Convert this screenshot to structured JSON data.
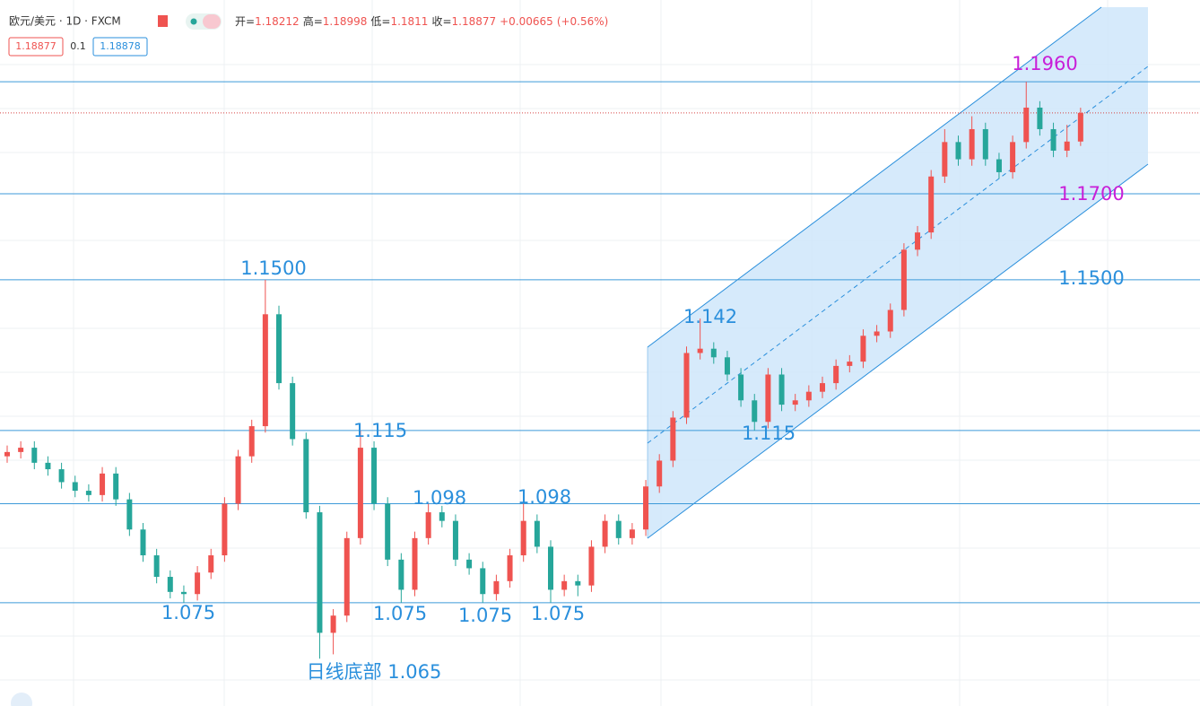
{
  "chart_data": {
    "type": "candlestick",
    "symbol": "欧元/美元 · 1D · FXCM",
    "ohlc_labels": [
      "开=",
      "高=",
      "低=",
      "收="
    ],
    "change": "+0.00665",
    "change_pct": "(+0.56%)",
    "bid": "1.18877",
    "spread": "0.1",
    "ask": "1.18878",
    "up_color": "#ef5350",
    "down_color": "#26a69a",
    "ylim": [
      1.051,
      1.215
    ],
    "levels": [
      1.196,
      1.17,
      1.15,
      1.115,
      1.098,
      1.075
    ],
    "annotations": [
      {
        "text": "1.1500",
        "color": "#2a8fdc"
      },
      {
        "text": "1.075",
        "color": "#2a8fdc"
      },
      {
        "text": "日线底部 1.065",
        "color": "#2a8fdc"
      },
      {
        "text": "1.115",
        "color": "#2a8fdc"
      },
      {
        "text": "1.098",
        "color": "#2a8fdc"
      },
      {
        "text": "1.098",
        "color": "#2a8fdc"
      },
      {
        "text": "1.075",
        "color": "#2a8fdc"
      },
      {
        "text": "1.075",
        "color": "#2a8fdc"
      },
      {
        "text": "1.075",
        "color": "#2a8fdc"
      },
      {
        "text": "1.142",
        "color": "#2a8fdc"
      },
      {
        "text": "1.115",
        "color": "#2a8fdc"
      },
      {
        "text": "1.1960",
        "color": "#c81fd8"
      },
      {
        "text": "1.1700",
        "color": "#c81fd8"
      },
      {
        "text": "1.1500",
        "color": "#2a8fdc"
      }
    ],
    "open": [
      1.109,
      1.11,
      1.111,
      1.1075,
      1.106,
      1.103,
      1.101,
      1.1,
      1.105,
      1.099,
      1.092,
      1.086,
      1.081,
      1.0775,
      1.077,
      1.082,
      1.086,
      1.098,
      1.109,
      1.116,
      1.142,
      1.126,
      1.113,
      1.096,
      1.068,
      1.072,
      1.09,
      1.111,
      1.098,
      1.085,
      1.078,
      1.09,
      1.096,
      1.094,
      1.085,
      1.083,
      1.077,
      1.08,
      1.086,
      1.094,
      1.088,
      1.078,
      1.08,
      1.079,
      1.088,
      1.094,
      1.09,
      1.092,
      1.102,
      1.108,
      1.118,
      1.133,
      1.134,
      1.132,
      1.128,
      1.122,
      1.117,
      1.128,
      1.121,
      1.122,
      1.124,
      1.126,
      1.13,
      1.131,
      1.137,
      1.138,
      1.143,
      1.157,
      1.161,
      1.174,
      1.182,
      1.178,
      1.185,
      1.178,
      1.175,
      1.182,
      1.19,
      1.185,
      1.18,
      1.18212
    ],
    "high": [
      1.1115,
      1.1125,
      1.1125,
      1.109,
      1.1075,
      1.1045,
      1.1025,
      1.1065,
      1.1065,
      1.1005,
      1.0935,
      1.0875,
      1.0825,
      1.079,
      1.0835,
      1.0875,
      1.0995,
      1.1105,
      1.1175,
      1.15,
      1.144,
      1.1275,
      1.1145,
      1.0975,
      1.0735,
      1.0915,
      1.115,
      1.1125,
      1.0995,
      1.0865,
      1.0915,
      1.098,
      1.0975,
      1.0955,
      1.0865,
      1.0845,
      1.0815,
      1.0875,
      1.098,
      1.0955,
      1.0895,
      1.0815,
      1.0815,
      1.0895,
      1.0955,
      1.0955,
      1.0935,
      1.1035,
      1.1095,
      1.1195,
      1.1345,
      1.141,
      1.1355,
      1.1335,
      1.1295,
      1.1235,
      1.1295,
      1.1295,
      1.1235,
      1.1255,
      1.1275,
      1.1315,
      1.1325,
      1.1385,
      1.1395,
      1.1445,
      1.1585,
      1.1625,
      1.1755,
      1.185,
      1.1835,
      1.188,
      1.1865,
      1.1795,
      1.1835,
      1.196,
      1.1915,
      1.1865,
      1.186,
      1.18998
    ],
    "low": [
      1.1075,
      1.1085,
      1.106,
      1.1045,
      1.1015,
      1.0995,
      1.0985,
      1.0985,
      1.0975,
      1.0905,
      1.0845,
      1.0795,
      1.076,
      1.075,
      1.0755,
      1.0805,
      1.0845,
      1.0965,
      1.1075,
      1.1145,
      1.1245,
      1.1115,
      1.0945,
      1.062,
      1.063,
      1.0705,
      1.0885,
      1.0965,
      1.0835,
      1.075,
      1.0765,
      1.0885,
      1.0925,
      1.0835,
      1.0815,
      1.075,
      1.0755,
      1.0785,
      1.0845,
      1.0865,
      1.075,
      1.0765,
      1.0765,
      1.0775,
      1.0865,
      1.0885,
      1.0885,
      1.0905,
      1.1005,
      1.1065,
      1.1165,
      1.1315,
      1.1305,
      1.1265,
      1.1205,
      1.115,
      1.1155,
      1.1195,
      1.1195,
      1.1205,
      1.1225,
      1.1245,
      1.1285,
      1.1295,
      1.1355,
      1.1365,
      1.1415,
      1.1555,
      1.1595,
      1.1725,
      1.1765,
      1.1765,
      1.1765,
      1.1735,
      1.1735,
      1.1805,
      1.1835,
      1.1785,
      1.1785,
      1.1811
    ],
    "close": [
      1.11,
      1.111,
      1.1075,
      1.106,
      1.103,
      1.101,
      1.1,
      1.105,
      1.099,
      1.092,
      1.086,
      1.081,
      1.0775,
      1.077,
      1.082,
      1.086,
      1.098,
      1.109,
      1.116,
      1.142,
      1.126,
      1.113,
      1.096,
      1.068,
      1.072,
      1.09,
      1.111,
      1.098,
      1.085,
      1.078,
      1.09,
      1.096,
      1.094,
      1.085,
      1.083,
      1.077,
      1.08,
      1.086,
      1.094,
      1.088,
      1.078,
      1.08,
      1.079,
      1.088,
      1.094,
      1.09,
      1.092,
      1.102,
      1.108,
      1.118,
      1.133,
      1.134,
      1.132,
      1.128,
      1.122,
      1.117,
      1.128,
      1.121,
      1.122,
      1.124,
      1.126,
      1.13,
      1.131,
      1.137,
      1.138,
      1.143,
      1.157,
      1.161,
      1.174,
      1.182,
      1.178,
      1.185,
      1.178,
      1.175,
      1.182,
      1.19,
      1.185,
      1.18,
      1.18212,
      1.18877
    ]
  }
}
